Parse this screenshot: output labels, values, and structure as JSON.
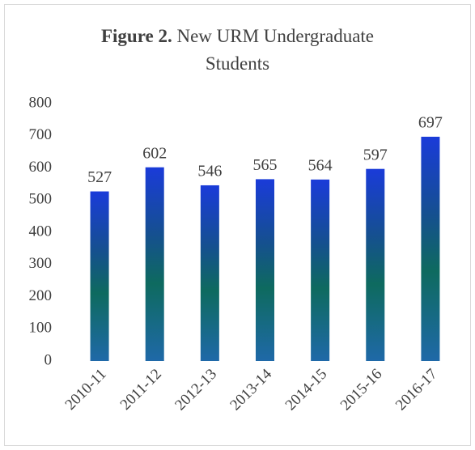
{
  "chart_data": {
    "type": "bar",
    "title_label": "Figure 2.",
    "title": "New URM Undergraduate Students",
    "categories": [
      "2010-11",
      "2011-12",
      "2012-13",
      "2013-14",
      "2014-15",
      "2015-16",
      "2016-17"
    ],
    "values": [
      527,
      602,
      546,
      565,
      564,
      597,
      697
    ],
    "ylim": [
      0,
      800
    ],
    "yticks": [
      0,
      100,
      200,
      300,
      400,
      500,
      600,
      700,
      800
    ],
    "grid": false
  }
}
